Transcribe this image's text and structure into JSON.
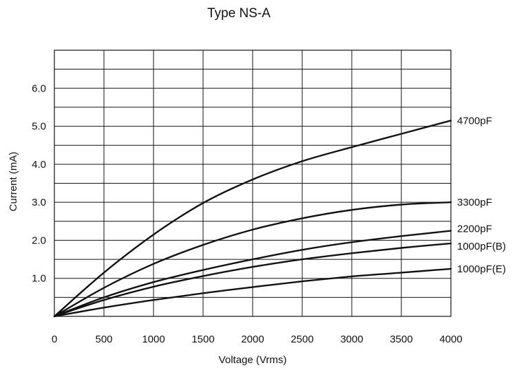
{
  "chart_data": {
    "type": "line",
    "title": "Type NS-A",
    "xlabel": "Voltage (Vrms)",
    "ylabel": "Current (mA)",
    "xlim": [
      0,
      4000
    ],
    "ylim": [
      0,
      7.0
    ],
    "xticks": [
      0,
      500,
      1000,
      1500,
      2000,
      2500,
      3000,
      3500,
      4000
    ],
    "yticks": [
      1.0,
      2.0,
      3.0,
      4.0,
      5.0,
      6.0
    ],
    "ytick_labels": [
      "1.0",
      "2.0",
      "3.0",
      "4.0",
      "5.0",
      "6.0"
    ],
    "grid": true,
    "y_minor_gridlines": true,
    "x": [
      0,
      500,
      1000,
      1500,
      2000,
      2500,
      3000,
      3500,
      4000
    ],
    "series": [
      {
        "name": "4700pF",
        "values": [
          0,
          1.15,
          2.15,
          2.98,
          3.6,
          4.08,
          4.45,
          4.8,
          5.15
        ]
      },
      {
        "name": "3300pF",
        "values": [
          0,
          0.75,
          1.38,
          1.88,
          2.28,
          2.58,
          2.8,
          2.94,
          3.0
        ]
      },
      {
        "name": "2200pF",
        "values": [
          0,
          0.5,
          0.9,
          1.22,
          1.5,
          1.75,
          1.95,
          2.11,
          2.25
        ]
      },
      {
        "name": "1000pF(B)",
        "values": [
          0,
          0.43,
          0.78,
          1.06,
          1.3,
          1.5,
          1.66,
          1.8,
          1.92
        ]
      },
      {
        "name": "1000pF(E)",
        "values": [
          0,
          0.23,
          0.43,
          0.61,
          0.77,
          0.92,
          1.05,
          1.15,
          1.25
        ]
      }
    ]
  }
}
